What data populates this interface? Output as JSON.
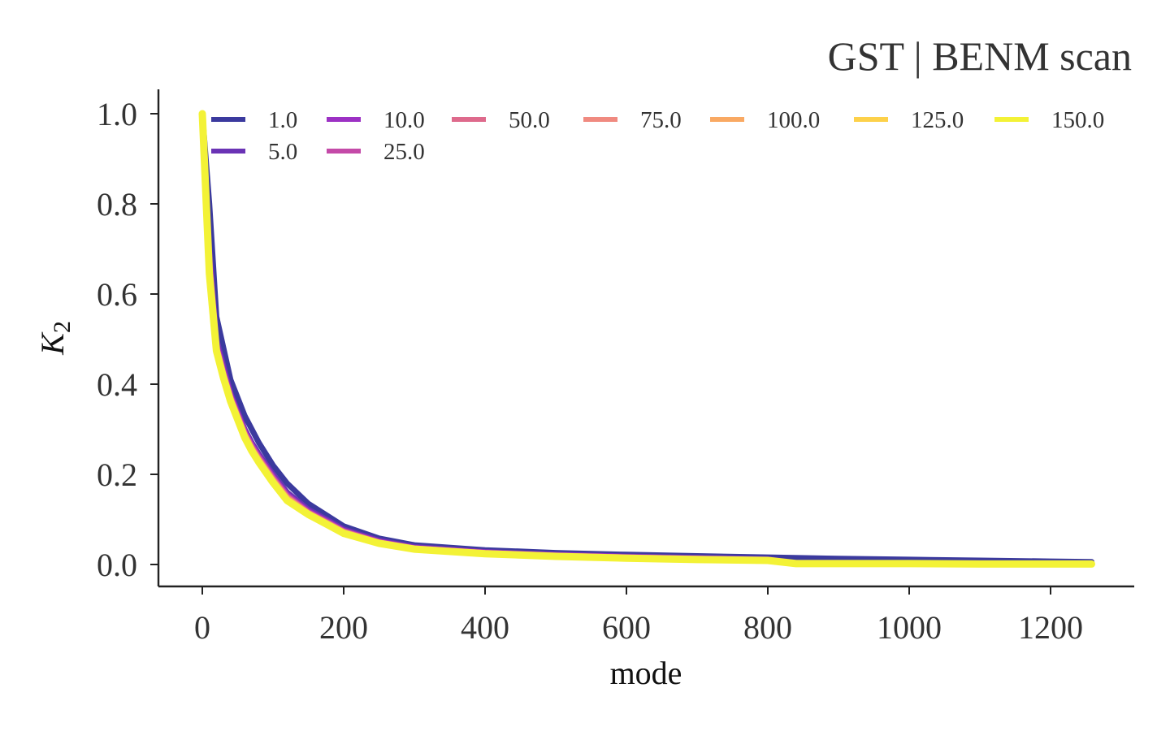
{
  "chart_data": {
    "type": "line",
    "title": "GST | BENM scan",
    "xlabel": "mode",
    "ylabel_main": "K",
    "ylabel_sub": "2",
    "xlim": [
      -62,
      1320
    ],
    "ylim": [
      -0.05,
      1.06
    ],
    "xticks": [
      0,
      200,
      400,
      600,
      800,
      1000,
      1200
    ],
    "xtick_labels": [
      "0",
      "200",
      "400",
      "600",
      "800",
      "1000",
      "1200"
    ],
    "yticks": [
      0.0,
      0.2,
      0.4,
      0.6,
      0.8,
      1.0
    ],
    "ytick_labels": [
      "0.0",
      "0.2",
      "0.4",
      "0.6",
      "0.8",
      "1.0"
    ],
    "grid": false,
    "legend_placement": "top",
    "series": [
      {
        "name": "1.0",
        "color": "#3b3a9e",
        "x": [
          0,
          10,
          20,
          30,
          40,
          50,
          60,
          70,
          80,
          100,
          120,
          150,
          180,
          200,
          250,
          300,
          400,
          500,
          600,
          700,
          800,
          900,
          1000,
          1100,
          1200,
          1258
        ],
        "y": [
          1.0,
          0.8,
          0.55,
          0.48,
          0.41,
          0.37,
          0.33,
          0.3,
          0.27,
          0.22,
          0.18,
          0.135,
          0.105,
          0.085,
          0.058,
          0.043,
          0.032,
          0.026,
          0.022,
          0.019,
          0.016,
          0.013,
          0.011,
          0.009,
          0.007,
          0.006
        ]
      },
      {
        "name": "5.0",
        "color": "#6a33b5",
        "x": [
          0,
          10,
          20,
          30,
          40,
          50,
          60,
          70,
          80,
          100,
          120,
          150,
          180,
          200,
          250,
          300,
          400,
          500,
          600,
          700,
          800,
          840,
          900,
          1000,
          1100,
          1200,
          1258
        ],
        "y": [
          1.0,
          0.7,
          0.5,
          0.44,
          0.38,
          0.34,
          0.3,
          0.27,
          0.245,
          0.2,
          0.16,
          0.122,
          0.096,
          0.078,
          0.053,
          0.039,
          0.028,
          0.022,
          0.018,
          0.015,
          0.012,
          0.004,
          0.004,
          0.003,
          0.003,
          0.002,
          0.002
        ]
      },
      {
        "name": "10.0",
        "color": "#9c31c4",
        "x": [
          0,
          10,
          20,
          30,
          40,
          50,
          60,
          70,
          80,
          100,
          120,
          150,
          180,
          200,
          250,
          300,
          400,
          500,
          600,
          700,
          800,
          840,
          900,
          1000,
          1100,
          1200,
          1258
        ],
        "y": [
          1.0,
          0.68,
          0.49,
          0.43,
          0.375,
          0.335,
          0.295,
          0.265,
          0.24,
          0.195,
          0.155,
          0.118,
          0.093,
          0.075,
          0.051,
          0.037,
          0.027,
          0.021,
          0.017,
          0.014,
          0.011,
          0.003,
          0.003,
          0.003,
          0.002,
          0.002,
          0.002
        ]
      },
      {
        "name": "25.0",
        "color": "#c44aa8",
        "x": [
          0,
          10,
          20,
          30,
          40,
          50,
          60,
          70,
          80,
          100,
          120,
          150,
          180,
          200,
          250,
          300,
          400,
          500,
          600,
          700,
          800,
          840,
          900,
          1000,
          1100,
          1200,
          1258
        ],
        "y": [
          1.0,
          0.67,
          0.485,
          0.425,
          0.372,
          0.332,
          0.292,
          0.262,
          0.237,
          0.192,
          0.152,
          0.116,
          0.091,
          0.074,
          0.05,
          0.036,
          0.026,
          0.02,
          0.016,
          0.013,
          0.01,
          0.003,
          0.003,
          0.002,
          0.002,
          0.002,
          0.001
        ]
      },
      {
        "name": "50.0",
        "color": "#de6a8c",
        "x": [
          0,
          10,
          20,
          30,
          40,
          50,
          60,
          70,
          80,
          100,
          120,
          150,
          180,
          200,
          250,
          300,
          400,
          500,
          600,
          700,
          800,
          840,
          900,
          1000,
          1100,
          1200,
          1258
        ],
        "y": [
          1.0,
          0.665,
          0.482,
          0.422,
          0.37,
          0.33,
          0.29,
          0.26,
          0.235,
          0.19,
          0.15,
          0.115,
          0.09,
          0.073,
          0.049,
          0.036,
          0.026,
          0.02,
          0.016,
          0.013,
          0.01,
          0.003,
          0.003,
          0.002,
          0.002,
          0.002,
          0.001
        ]
      },
      {
        "name": "75.0",
        "color": "#f08a80",
        "x": [
          0,
          10,
          20,
          30,
          40,
          50,
          60,
          70,
          80,
          100,
          120,
          150,
          180,
          200,
          250,
          300,
          400,
          500,
          600,
          700,
          800,
          840,
          900,
          1000,
          1100,
          1200,
          1258
        ],
        "y": [
          1.0,
          0.66,
          0.48,
          0.42,
          0.368,
          0.328,
          0.288,
          0.258,
          0.233,
          0.188,
          0.148,
          0.114,
          0.089,
          0.072,
          0.049,
          0.035,
          0.025,
          0.019,
          0.015,
          0.012,
          0.01,
          0.003,
          0.003,
          0.002,
          0.002,
          0.001,
          0.001
        ]
      },
      {
        "name": "100.0",
        "color": "#f9a963",
        "x": [
          0,
          10,
          20,
          30,
          40,
          50,
          60,
          70,
          80,
          100,
          120,
          150,
          180,
          200,
          250,
          300,
          400,
          500,
          600,
          700,
          800,
          840,
          900,
          1000,
          1100,
          1200,
          1258
        ],
        "y": [
          1.0,
          0.655,
          0.478,
          0.418,
          0.366,
          0.326,
          0.286,
          0.256,
          0.231,
          0.186,
          0.146,
          0.113,
          0.088,
          0.071,
          0.048,
          0.035,
          0.025,
          0.019,
          0.015,
          0.012,
          0.009,
          0.003,
          0.003,
          0.002,
          0.002,
          0.001,
          0.001
        ]
      },
      {
        "name": "125.0",
        "color": "#fdd14a",
        "x": [
          0,
          10,
          20,
          30,
          40,
          50,
          60,
          70,
          80,
          100,
          120,
          150,
          180,
          200,
          250,
          300,
          400,
          500,
          600,
          700,
          800,
          840,
          900,
          1000,
          1100,
          1200,
          1258
        ],
        "y": [
          1.0,
          0.65,
          0.476,
          0.416,
          0.364,
          0.324,
          0.284,
          0.254,
          0.229,
          0.184,
          0.144,
          0.112,
          0.087,
          0.07,
          0.048,
          0.034,
          0.025,
          0.019,
          0.015,
          0.012,
          0.009,
          0.003,
          0.002,
          0.002,
          0.002,
          0.001,
          0.001
        ]
      },
      {
        "name": "150.0",
        "color": "#f3f236",
        "x": [
          0,
          10,
          20,
          30,
          40,
          50,
          60,
          70,
          80,
          100,
          120,
          150,
          180,
          200,
          250,
          300,
          400,
          500,
          600,
          700,
          800,
          840,
          900,
          1000,
          1100,
          1200,
          1258
        ],
        "y": [
          1.0,
          0.645,
          0.474,
          0.414,
          0.362,
          0.322,
          0.282,
          0.252,
          0.227,
          0.182,
          0.142,
          0.111,
          0.086,
          0.069,
          0.047,
          0.034,
          0.024,
          0.018,
          0.014,
          0.011,
          0.009,
          0.002,
          0.002,
          0.002,
          0.001,
          0.001,
          0.001
        ]
      }
    ]
  }
}
